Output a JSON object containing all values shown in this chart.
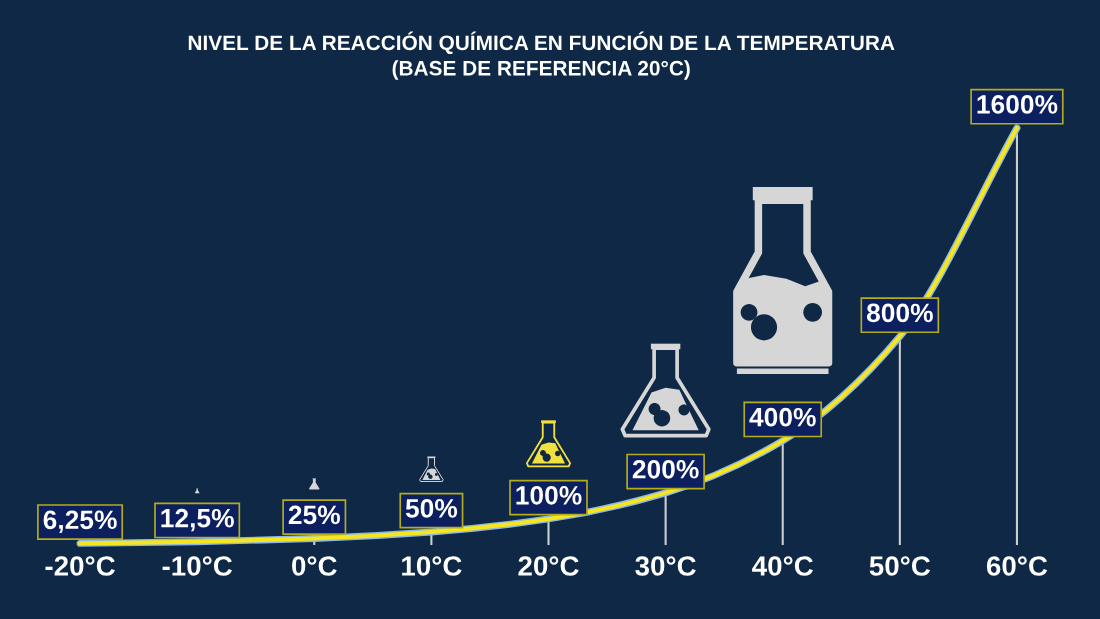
{
  "chart_data": {
    "type": "line",
    "title": "NIVEL DE LA REACCIÓN QUÍMICA EN FUNCIÓN DE LA TEMPERATURA",
    "subtitle": "(BASE DE REFERENCIA 20°C)",
    "categories": [
      "-20°C",
      "-10°C",
      "0°C",
      "10°C",
      "20°C",
      "30°C",
      "40°C",
      "50°C",
      "60°C"
    ],
    "series": [
      {
        "color": "#f5e61e",
        "values": [
          6.25,
          12.5,
          25,
          50,
          100,
          200,
          400,
          800,
          1600
        ],
        "value_labels": [
          "6,25%",
          "12,5%",
          "25%",
          "50%",
          "100%",
          "200%",
          "400%",
          "800%",
          "1600%"
        ]
      }
    ],
    "tick_labels": "x",
    "line_style": "solid"
  }
}
